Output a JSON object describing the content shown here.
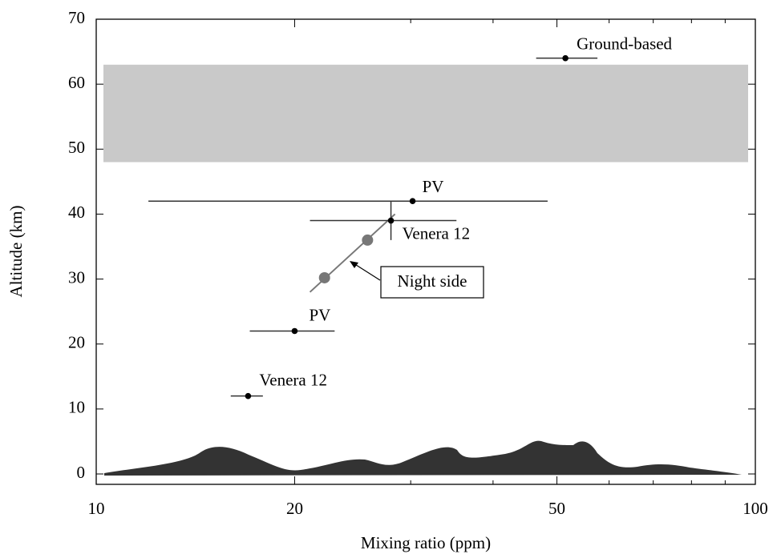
{
  "chart_data": {
    "type": "scatter",
    "xlabel": "Mixing ratio (ppm)",
    "ylabel": "Altitude (km)",
    "xscale": "log",
    "xlim": [
      10,
      100
    ],
    "xticks": [
      10,
      20,
      50,
      100
    ],
    "xminor_ticks": [
      30,
      40,
      60,
      70,
      80,
      90
    ],
    "ylim": [
      -1.6,
      70
    ],
    "yticks": [
      0,
      10,
      20,
      30,
      40,
      50,
      60,
      70
    ],
    "shaded_band": [
      48,
      63
    ],
    "band_color": "#c9c9c9",
    "color": "#000000",
    "series": [
      {
        "name": "Ground-based",
        "x": [
          51.5
        ],
        "values": [
          64
        ],
        "x_low": [
          46.5
        ],
        "x_high": [
          57.6
        ]
      },
      {
        "name": "PV",
        "x": [
          30.2
        ],
        "values": [
          42
        ],
        "x_low": [
          12.0
        ],
        "x_high": [
          48.4
        ]
      },
      {
        "name": "Venera 12",
        "x": [
          28.0
        ],
        "values": [
          39
        ],
        "x_low": [
          21.1
        ],
        "x_high": [
          35.2
        ],
        "y_low": [
          36
        ],
        "y_high": [
          42
        ]
      },
      {
        "name": "PV",
        "x": [
          20
        ],
        "values": [
          22
        ],
        "x_low": [
          17.1
        ],
        "x_high": [
          23.0
        ]
      },
      {
        "name": "Venera 12",
        "x": [
          17.0
        ],
        "values": [
          12
        ],
        "x_low": [
          16.0
        ],
        "x_high": [
          17.9
        ]
      }
    ],
    "night_side": {
      "name": "Night side",
      "color": "#777777",
      "x": [
        22.2,
        25.8
      ],
      "values": [
        30.2,
        36
      ],
      "line_x": [
        21.1,
        28.4
      ],
      "line_y": [
        28,
        40
      ]
    }
  }
}
